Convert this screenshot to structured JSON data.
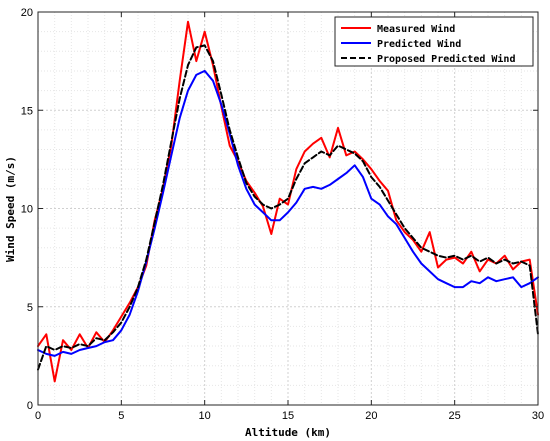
{
  "chart_data": {
    "type": "line",
    "xlabel": "Altitude (km)",
    "ylabel": "Wind Speed (m/s)",
    "xlim": [
      0,
      30
    ],
    "ylim": [
      0,
      20
    ],
    "xticks": [
      0,
      5,
      10,
      15,
      20,
      25,
      30
    ],
    "yticks": [
      0,
      5,
      10,
      15,
      20
    ],
    "grid": true,
    "legend_position": "top-right",
    "series": [
      {
        "name": "Measured Wind",
        "color": "#ff0000",
        "style": "solid",
        "x": [
          0,
          0.5,
          1,
          1.5,
          2,
          2.5,
          3,
          3.5,
          4,
          4.5,
          5,
          5.5,
          6,
          6.5,
          7,
          7.5,
          8,
          8.5,
          9,
          9.5,
          10,
          10.5,
          11,
          11.5,
          12,
          12.5,
          13,
          13.5,
          14,
          14.5,
          15,
          15.5,
          16,
          16.5,
          17,
          17.5,
          18,
          18.5,
          19,
          19.5,
          20,
          20.5,
          21,
          21.5,
          22,
          22.5,
          23,
          23.5,
          24,
          24.5,
          25,
          25.5,
          26,
          26.5,
          27,
          27.5,
          28,
          28.5,
          29,
          29.5,
          30
        ],
        "y": [
          3.0,
          3.6,
          1.2,
          3.3,
          2.8,
          3.6,
          2.9,
          3.7,
          3.2,
          3.8,
          4.5,
          5.2,
          6.0,
          7.1,
          9.4,
          11.0,
          13.2,
          16.5,
          19.5,
          17.5,
          19.0,
          17.3,
          15.2,
          13.2,
          12.4,
          11.4,
          10.8,
          10.1,
          8.7,
          10.5,
          10.2,
          12.0,
          12.9,
          13.3,
          13.6,
          12.6,
          14.1,
          12.7,
          12.9,
          12.5,
          12.0,
          11.4,
          10.9,
          9.4,
          8.8,
          8.4,
          7.8,
          8.8,
          7.0,
          7.4,
          7.5,
          7.2,
          7.8,
          6.8,
          7.4,
          7.2,
          7.6,
          6.9,
          7.3,
          7.4,
          4.6
        ]
      },
      {
        "name": "Predicted Wind",
        "color": "#0000ff",
        "style": "solid",
        "x": [
          0,
          0.5,
          1,
          1.5,
          2,
          2.5,
          3,
          3.5,
          4,
          4.5,
          5,
          5.5,
          6,
          6.5,
          7,
          7.5,
          8,
          8.5,
          9,
          9.5,
          10,
          10.5,
          11,
          11.5,
          12,
          12.5,
          13,
          13.5,
          14,
          14.5,
          15,
          15.5,
          16,
          16.5,
          17,
          17.5,
          18,
          18.5,
          19,
          19.5,
          20,
          20.5,
          21,
          21.5,
          22,
          22.5,
          23,
          23.5,
          24,
          24.5,
          25,
          25.5,
          26,
          26.5,
          27,
          27.5,
          28,
          28.5,
          29,
          29.5,
          30
        ],
        "y": [
          2.8,
          2.6,
          2.5,
          2.7,
          2.6,
          2.8,
          2.9,
          3.0,
          3.2,
          3.3,
          3.8,
          4.6,
          5.8,
          7.3,
          9.0,
          10.8,
          12.7,
          14.6,
          16.0,
          16.8,
          17.0,
          16.5,
          15.3,
          13.8,
          12.2,
          11.0,
          10.2,
          9.8,
          9.4,
          9.4,
          9.8,
          10.3,
          11.0,
          11.1,
          11.0,
          11.2,
          11.5,
          11.8,
          12.2,
          11.6,
          10.5,
          10.2,
          9.6,
          9.2,
          8.5,
          7.8,
          7.2,
          6.8,
          6.4,
          6.2,
          6.0,
          6.0,
          6.3,
          6.2,
          6.5,
          6.3,
          6.4,
          6.5,
          6.0,
          6.2,
          6.5
        ]
      },
      {
        "name": "Proposed Predicted Wind",
        "color": "#000000",
        "style": "dashed",
        "x": [
          0,
          0.5,
          1,
          1.5,
          2,
          2.5,
          3,
          3.5,
          4,
          4.5,
          5,
          5.5,
          6,
          6.5,
          7,
          7.5,
          8,
          8.5,
          9,
          9.5,
          10,
          10.5,
          11,
          11.5,
          12,
          12.5,
          13,
          13.5,
          14,
          14.5,
          15,
          15.5,
          16,
          16.5,
          17,
          17.5,
          18,
          18.5,
          19,
          19.5,
          20,
          20.5,
          21,
          21.5,
          22,
          22.5,
          23,
          23.5,
          24,
          24.5,
          25,
          25.5,
          26,
          26.5,
          27,
          27.5,
          28,
          28.5,
          29,
          29.5,
          30
        ],
        "y": [
          1.8,
          3.0,
          2.8,
          3.0,
          2.9,
          3.1,
          3.0,
          3.4,
          3.3,
          3.7,
          4.2,
          5.0,
          6.0,
          7.4,
          9.3,
          11.2,
          13.4,
          15.6,
          17.3,
          18.2,
          18.3,
          17.5,
          15.8,
          14.0,
          12.6,
          11.3,
          10.6,
          10.2,
          10.0,
          10.2,
          10.5,
          11.5,
          12.3,
          12.6,
          12.9,
          12.7,
          13.2,
          13.0,
          12.8,
          12.4,
          11.6,
          11.1,
          10.4,
          9.7,
          9.0,
          8.5,
          8.0,
          7.8,
          7.6,
          7.5,
          7.6,
          7.4,
          7.6,
          7.3,
          7.5,
          7.2,
          7.4,
          7.2,
          7.3,
          7.1,
          3.6
        ]
      }
    ]
  }
}
